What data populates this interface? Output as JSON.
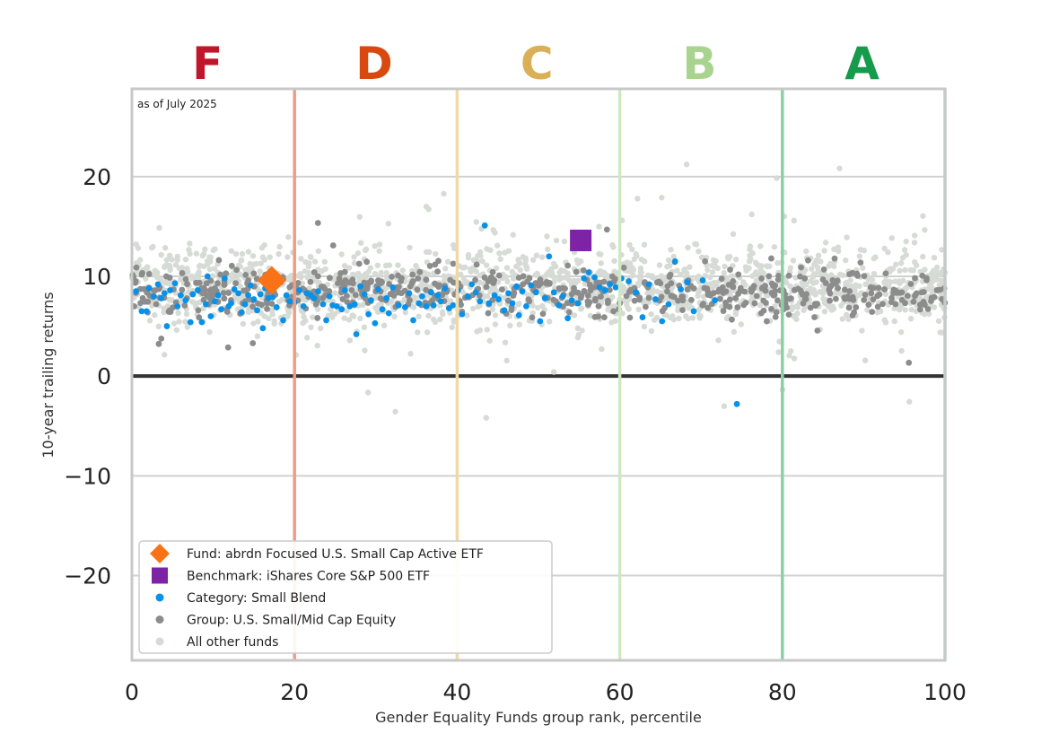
{
  "chart_data": {
    "type": "scatter",
    "note": "as of July 2025",
    "xlabel": "Gender Equality Funds group rank, percentile",
    "ylabel": "10-year trailing returns",
    "xlim": [
      0,
      100
    ],
    "ylim": [
      -28.5,
      28.8
    ],
    "x_ticks": [
      0,
      20,
      40,
      60,
      80,
      100
    ],
    "x_tick_labels": [
      "0",
      "20",
      "40",
      "60",
      "80",
      "100"
    ],
    "y_ticks": [
      -20,
      -10,
      0,
      10,
      20
    ],
    "y_tick_labels": [
      "−20",
      "−10",
      "0",
      "10",
      "20"
    ],
    "grid": "horizontal",
    "grades": [
      {
        "label": "F",
        "x_center": 9.3,
        "color": "#c0152a"
      },
      {
        "label": "D",
        "x_center": 29.8,
        "color": "#d9480f"
      },
      {
        "label": "C",
        "x_center": 49.8,
        "color": "#d9b055"
      },
      {
        "label": "B",
        "x_center": 69.8,
        "color": "#a8d48f"
      },
      {
        "label": "A",
        "x_center": 89.8,
        "color": "#169a4b"
      }
    ],
    "boundaries": [
      {
        "x": 20,
        "color": "#ee9d82"
      },
      {
        "x": 40,
        "color": "#f0d9a6"
      },
      {
        "x": 60,
        "color": "#cfe8c4"
      },
      {
        "x": 80,
        "color": "#8bd0a4"
      },
      {
        "x": 100,
        "color": "#a8dbbb"
      }
    ],
    "colors": {
      "fund": "#f97316",
      "benchmark": "#7e22a6",
      "category": "#0891e8",
      "group": "#8c8c8c",
      "other": "#d6dbd5"
    },
    "fund": {
      "name": "Fund: abrdn Focused U.S. Small Cap Active ETF",
      "x": 17.2,
      "y": 9.6
    },
    "benchmark": {
      "name": "Benchmark: iShares Core S&P 500 ETF",
      "x": 55.2,
      "y": 13.6
    },
    "category": {
      "name": "Category: Small Blend",
      "points": [
        [
          0.5,
          8.5
        ],
        [
          1.2,
          6.5
        ],
        [
          1.8,
          6.5
        ],
        [
          2.1,
          8.8
        ],
        [
          2.7,
          8.0
        ],
        [
          3.2,
          9.2
        ],
        [
          3.6,
          7.8
        ],
        [
          4.0,
          8.3
        ],
        [
          4.3,
          5.0
        ],
        [
          4.7,
          8.6
        ],
        [
          5.3,
          9.3
        ],
        [
          5.6,
          7.0
        ],
        [
          6.0,
          8.1
        ],
        [
          6.6,
          7.6
        ],
        [
          7.2,
          5.4
        ],
        [
          7.5,
          8.2
        ],
        [
          8.1,
          8.6
        ],
        [
          8.6,
          5.4
        ],
        [
          9.1,
          7.2
        ],
        [
          9.3,
          10.0
        ],
        [
          9.7,
          6.0
        ],
        [
          10.2,
          7.5
        ],
        [
          10.6,
          8.1
        ],
        [
          11.0,
          6.7
        ],
        [
          11.4,
          9.8
        ],
        [
          11.9,
          7.0
        ],
        [
          12.2,
          7.3
        ],
        [
          12.6,
          8.7
        ],
        [
          13.1,
          8.3
        ],
        [
          13.5,
          6.4
        ],
        [
          13.9,
          7.2
        ],
        [
          14.3,
          8.1
        ],
        [
          14.6,
          9.1
        ],
        [
          15.0,
          7.7
        ],
        [
          15.4,
          6.6
        ],
        [
          15.8,
          8.2
        ],
        [
          16.1,
          4.8
        ],
        [
          16.4,
          8.8
        ],
        [
          16.8,
          7.8
        ],
        [
          17.3,
          7.9
        ],
        [
          17.8,
          6.9
        ],
        [
          18.3,
          9.4
        ],
        [
          18.6,
          5.6
        ],
        [
          19.0,
          8.1
        ],
        [
          19.4,
          7.5
        ],
        [
          20.0,
          7.4
        ],
        [
          20.6,
          8.6
        ],
        [
          21.1,
          7.0
        ],
        [
          21.5,
          8.3
        ],
        [
          22.0,
          8.1
        ],
        [
          22.4,
          7.8
        ],
        [
          22.9,
          8.5
        ],
        [
          23.5,
          7.2
        ],
        [
          23.9,
          5.6
        ],
        [
          24.3,
          8.0
        ],
        [
          24.7,
          7.1
        ],
        [
          25.2,
          7.0
        ],
        [
          25.8,
          6.7
        ],
        [
          26.2,
          8.6
        ],
        [
          26.8,
          7.0
        ],
        [
          27.4,
          7.2
        ],
        [
          27.6,
          4.2
        ],
        [
          28.1,
          9.0
        ],
        [
          28.6,
          8.2
        ],
        [
          29.1,
          6.2
        ],
        [
          29.4,
          7.6
        ],
        [
          29.9,
          5.3
        ],
        [
          30.3,
          8.7
        ],
        [
          30.8,
          6.7
        ],
        [
          31.3,
          7.8
        ],
        [
          31.6,
          6.3
        ],
        [
          32.1,
          8.9
        ],
        [
          32.8,
          7.1
        ],
        [
          33.6,
          6.9
        ],
        [
          34.1,
          8.3
        ],
        [
          34.6,
          5.6
        ],
        [
          35.3,
          7.3
        ],
        [
          35.7,
          8.0
        ],
        [
          36.2,
          7.0
        ],
        [
          36.8,
          8.4
        ],
        [
          37.1,
          7.1
        ],
        [
          37.6,
          8.1
        ],
        [
          38.0,
          7.5
        ],
        [
          38.5,
          8.8
        ],
        [
          39.0,
          6.8
        ],
        [
          39.5,
          7.1
        ],
        [
          40.1,
          8.6
        ],
        [
          40.6,
          6.2
        ],
        [
          41.3,
          8.0
        ],
        [
          41.8,
          9.2
        ],
        [
          42.3,
          8.4
        ],
        [
          42.8,
          7.5
        ],
        [
          43.4,
          15.1
        ],
        [
          43.9,
          7.3
        ],
        [
          44.6,
          8.1
        ],
        [
          45.1,
          7.7
        ],
        [
          45.8,
          6.6
        ],
        [
          46.3,
          8.3
        ],
        [
          46.8,
          7.3
        ],
        [
          47.3,
          9.0
        ],
        [
          47.6,
          6.1
        ],
        [
          48.0,
          8.5
        ],
        [
          48.5,
          7.0
        ],
        [
          49.1,
          9.1
        ],
        [
          49.7,
          8.4
        ],
        [
          50.2,
          5.5
        ],
        [
          50.8,
          7.8
        ],
        [
          51.3,
          12.0
        ],
        [
          51.9,
          8.4
        ],
        [
          52.5,
          7.1
        ],
        [
          53.0,
          8.0
        ],
        [
          53.6,
          5.8
        ],
        [
          54.1,
          7.6
        ],
        [
          54.9,
          7.3
        ],
        [
          55.6,
          9.8
        ],
        [
          56.2,
          10.4
        ],
        [
          56.9,
          9.9
        ],
        [
          57.5,
          8.9
        ],
        [
          58.2,
          8.6
        ],
        [
          58.8,
          9.2
        ],
        [
          59.5,
          8.9
        ],
        [
          60.2,
          9.8
        ],
        [
          61.1,
          9.5
        ],
        [
          62.0,
          8.4
        ],
        [
          62.8,
          5.9
        ],
        [
          63.6,
          9.2
        ],
        [
          64.4,
          7.7
        ],
        [
          65.2,
          5.5
        ],
        [
          66.0,
          7.2
        ],
        [
          66.8,
          11.5
        ],
        [
          67.5,
          8.7
        ],
        [
          68.3,
          9.4
        ],
        [
          69.1,
          6.5
        ],
        [
          70.2,
          9.6
        ],
        [
          71.7,
          7.6
        ],
        [
          74.4,
          -2.8
        ]
      ]
    },
    "group": {
      "name": "Group: U.S. Small/Mid Cap Equity",
      "count": 620,
      "center": 8.5,
      "spread": 2.6
    },
    "others": {
      "name": "All other funds",
      "count": 1700,
      "center": 9.0,
      "spread": 3.5
    }
  }
}
